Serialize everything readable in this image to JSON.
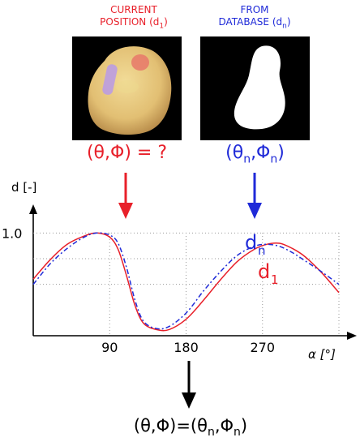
{
  "labels": {
    "current_line1": "CURRENT",
    "current_line2": "POSITION (d",
    "current_sub": "1",
    "current_close": ")",
    "db_line1": "FROM",
    "db_line2": "DATABASE (d",
    "db_sub": "n",
    "db_close": ")",
    "unknown_orientation": "(θ,Φ) = ?",
    "db_orientation_open": "(θ",
    "db_orientation_sub1": "n",
    "db_orientation_mid": ",Φ",
    "db_orientation_sub2": "n",
    "db_orientation_close": ")",
    "result_prefix": "(θ,Φ)=(θ",
    "result_sub1": "n",
    "result_mid": ",Φ",
    "result_sub2": "n",
    "result_close": ")"
  },
  "colors": {
    "red": "#e8202a",
    "blue": "#1f2ad8",
    "black": "#000000"
  },
  "chart_data": {
    "type": "line",
    "ylabel": "d [-]",
    "xlabel": "α [°]",
    "xticks": [
      "90",
      "180",
      "270"
    ],
    "yticks": [
      "1.0"
    ],
    "xlim": [
      0,
      360
    ],
    "ylim": [
      0,
      1.2
    ],
    "grid": "dotted",
    "series": [
      {
        "name": "d1",
        "color": "#e8202a",
        "style": "solid",
        "points": [
          [
            0,
            0.55
          ],
          [
            20,
            0.74
          ],
          [
            40,
            0.89
          ],
          [
            60,
            0.97
          ],
          [
            75,
            1.0
          ],
          [
            90,
            0.96
          ],
          [
            100,
            0.84
          ],
          [
            110,
            0.58
          ],
          [
            120,
            0.29
          ],
          [
            130,
            0.12
          ],
          [
            145,
            0.06
          ],
          [
            160,
            0.06
          ],
          [
            180,
            0.16
          ],
          [
            200,
            0.34
          ],
          [
            220,
            0.54
          ],
          [
            240,
            0.72
          ],
          [
            260,
            0.84
          ],
          [
            275,
            0.89
          ],
          [
            290,
            0.9
          ],
          [
            305,
            0.85
          ],
          [
            320,
            0.77
          ],
          [
            340,
            0.61
          ],
          [
            360,
            0.42
          ]
        ]
      },
      {
        "name": "dn",
        "color": "#1f2ad8",
        "style": "dashed",
        "points": [
          [
            0,
            0.5
          ],
          [
            20,
            0.7
          ],
          [
            40,
            0.85
          ],
          [
            60,
            0.96
          ],
          [
            75,
            1.0
          ],
          [
            90,
            0.98
          ],
          [
            100,
            0.9
          ],
          [
            110,
            0.66
          ],
          [
            120,
            0.34
          ],
          [
            130,
            0.14
          ],
          [
            145,
            0.07
          ],
          [
            160,
            0.09
          ],
          [
            180,
            0.22
          ],
          [
            200,
            0.43
          ],
          [
            220,
            0.62
          ],
          [
            240,
            0.78
          ],
          [
            260,
            0.87
          ],
          [
            275,
            0.89
          ],
          [
            290,
            0.87
          ],
          [
            305,
            0.81
          ],
          [
            320,
            0.73
          ],
          [
            340,
            0.62
          ],
          [
            360,
            0.5
          ]
        ]
      }
    ],
    "series_labels": [
      {
        "main": "d",
        "sub": "n",
        "color": "#1f2ad8"
      },
      {
        "main": "d",
        "sub": "1",
        "color": "#e8202a"
      }
    ]
  }
}
